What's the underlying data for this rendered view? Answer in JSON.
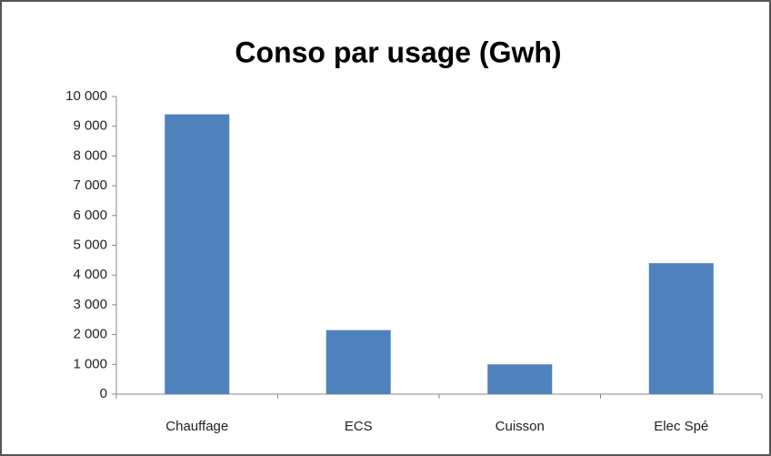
{
  "chart_data": {
    "type": "bar",
    "title": "Conso par usage (Gwh)",
    "categories": [
      "Chauffage",
      "ECS",
      "Cuisson",
      "Elec Spé"
    ],
    "values": [
      9400,
      2150,
      1000,
      4400
    ],
    "color": "#4f81bd",
    "ylim": [
      0,
      10000
    ],
    "yticks": [
      0,
      {
        "value": 1000,
        "label": "1 000"
      },
      {
        "value": 2000,
        "label": "2 000"
      },
      {
        "value": 3000,
        "label": "3 000"
      },
      {
        "value": 4000,
        "label": "4 000"
      },
      {
        "value": 5000,
        "label": "5 000"
      },
      {
        "value": 6000,
        "label": "6 000"
      },
      {
        "value": 7000,
        "label": "7 000"
      },
      {
        "value": 8000,
        "label": "8 000"
      },
      {
        "value": 9000,
        "label": "9 000"
      },
      {
        "value": 10000,
        "label": "10 000"
      }
    ],
    "grid": false
  }
}
